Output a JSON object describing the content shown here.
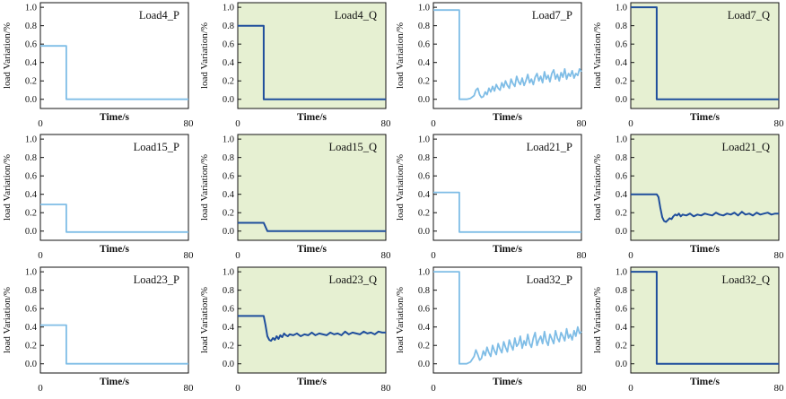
{
  "colors": {
    "p_line": "#7fbde6",
    "q_line": "#1f4e9c",
    "q_background": "#e6f0d2",
    "p_background": "#ffffff",
    "axis": "#111111"
  },
  "shared_axes": {
    "xlabel": "Time/s",
    "ylabel": "load Variation/%",
    "xlim": [
      0,
      80
    ],
    "xticks": [
      0,
      80
    ],
    "ylim": [
      -0.1,
      1.05
    ],
    "yticks": [
      "0.0",
      "0.2",
      "0.4",
      "0.6",
      "0.8",
      "1.0"
    ]
  },
  "chart_data": [
    {
      "type": "line",
      "title": "Load4_P",
      "kind": "P",
      "x": [
        0,
        14,
        14,
        80
      ],
      "y": [
        0.58,
        0.58,
        0.0,
        0.0
      ],
      "xlabel": "Time/s",
      "ylabel": "load Variation/%",
      "xlim": [
        0,
        80
      ],
      "ylim": [
        -0.1,
        1.05
      ]
    },
    {
      "type": "line",
      "title": "Load4_Q",
      "kind": "Q",
      "x": [
        0,
        14,
        14,
        80
      ],
      "y": [
        0.8,
        0.8,
        0.0,
        0.0
      ],
      "xlabel": "Time/s",
      "ylabel": "load Variation/%",
      "xlim": [
        0,
        80
      ],
      "ylim": [
        -0.1,
        1.05
      ]
    },
    {
      "type": "line",
      "title": "Load7_P",
      "kind": "P",
      "x": [
        0,
        14,
        14,
        18,
        20,
        22,
        23,
        24,
        25,
        26,
        27,
        28,
        29,
        30,
        31,
        32,
        33,
        34,
        35,
        36,
        37,
        38,
        39,
        40,
        41,
        42,
        43,
        44,
        45,
        46,
        47,
        48,
        49,
        50,
        51,
        52,
        53,
        54,
        55,
        56,
        57,
        58,
        59,
        60,
        61,
        62,
        63,
        64,
        65,
        66,
        67,
        68,
        69,
        70,
        71,
        72,
        73,
        74,
        75,
        76,
        77,
        78,
        79,
        80
      ],
      "y": [
        0.97,
        0.97,
        0.0,
        0.0,
        0.01,
        0.04,
        0.1,
        0.12,
        0.05,
        0.02,
        0.03,
        0.08,
        0.05,
        0.12,
        0.08,
        0.14,
        0.09,
        0.16,
        0.12,
        0.1,
        0.18,
        0.13,
        0.2,
        0.15,
        0.12,
        0.22,
        0.17,
        0.14,
        0.25,
        0.19,
        0.16,
        0.23,
        0.15,
        0.2,
        0.27,
        0.18,
        0.22,
        0.16,
        0.24,
        0.28,
        0.2,
        0.25,
        0.18,
        0.3,
        0.22,
        0.26,
        0.19,
        0.28,
        0.32,
        0.22,
        0.27,
        0.2,
        0.29,
        0.24,
        0.33,
        0.22,
        0.28,
        0.25,
        0.31,
        0.23,
        0.28,
        0.26,
        0.33,
        0.3
      ],
      "xlabel": "Time/s",
      "ylabel": "load Variation/%",
      "xlim": [
        0,
        80
      ],
      "ylim": [
        -0.1,
        1.05
      ]
    },
    {
      "type": "line",
      "title": "Load7_Q",
      "kind": "Q",
      "x": [
        0,
        14,
        14,
        80
      ],
      "y": [
        1.0,
        1.0,
        0.0,
        0.0
      ],
      "xlabel": "Time/s",
      "ylabel": "load Variation/%",
      "xlim": [
        0,
        80
      ],
      "ylim": [
        -0.1,
        1.05
      ]
    },
    {
      "type": "line",
      "title": "Load15_P",
      "kind": "P",
      "x": [
        0,
        14,
        14,
        80
      ],
      "y": [
        0.29,
        0.29,
        -0.01,
        -0.01
      ],
      "xlabel": "Time/s",
      "ylabel": "load Variation/%",
      "xlim": [
        0,
        80
      ],
      "ylim": [
        -0.1,
        1.05
      ]
    },
    {
      "type": "line",
      "title": "Load15_Q",
      "kind": "Q",
      "x": [
        0,
        14,
        16,
        80
      ],
      "y": [
        0.09,
        0.09,
        0.0,
        0.0
      ],
      "xlabel": "Time/s",
      "ylabel": "load Variation/%",
      "xlim": [
        0,
        80
      ],
      "ylim": [
        -0.1,
        1.05
      ]
    },
    {
      "type": "line",
      "title": "Load21_P",
      "kind": "P",
      "x": [
        0,
        14,
        14,
        80
      ],
      "y": [
        0.42,
        0.42,
        -0.01,
        -0.01
      ],
      "xlabel": "Time/s",
      "ylabel": "load Variation/%",
      "xlim": [
        0,
        80
      ],
      "ylim": [
        -0.1,
        1.05
      ]
    },
    {
      "type": "line",
      "title": "Load21_Q",
      "kind": "Q",
      "x": [
        0,
        14,
        15,
        16,
        17,
        18,
        19,
        20,
        21,
        22,
        23,
        24,
        25,
        26,
        27,
        28,
        30,
        32,
        34,
        36,
        38,
        40,
        42,
        44,
        46,
        48,
        50,
        52,
        54,
        56,
        58,
        60,
        62,
        64,
        66,
        68,
        70,
        72,
        74,
        76,
        78,
        80
      ],
      "y": [
        0.4,
        0.4,
        0.37,
        0.25,
        0.15,
        0.11,
        0.1,
        0.12,
        0.14,
        0.13,
        0.16,
        0.18,
        0.17,
        0.19,
        0.16,
        0.18,
        0.17,
        0.19,
        0.16,
        0.18,
        0.17,
        0.19,
        0.18,
        0.17,
        0.2,
        0.18,
        0.17,
        0.19,
        0.18,
        0.2,
        0.17,
        0.21,
        0.18,
        0.19,
        0.17,
        0.2,
        0.18,
        0.19,
        0.2,
        0.18,
        0.19,
        0.19
      ],
      "xlabel": "Time/s",
      "ylabel": "load Variation/%",
      "xlim": [
        0,
        80
      ],
      "ylim": [
        -0.1,
        1.05
      ]
    },
    {
      "type": "line",
      "title": "Load23_P",
      "kind": "P",
      "x": [
        0,
        14,
        14,
        80
      ],
      "y": [
        0.42,
        0.42,
        0.0,
        0.0
      ],
      "xlabel": "Time/s",
      "ylabel": "load Variation/%",
      "xlim": [
        0,
        80
      ],
      "ylim": [
        -0.1,
        1.05
      ]
    },
    {
      "type": "line",
      "title": "Load23_Q",
      "kind": "Q",
      "x": [
        0,
        14,
        15,
        16,
        17,
        18,
        19,
        20,
        21,
        22,
        23,
        24,
        25,
        26,
        27,
        28,
        30,
        32,
        34,
        36,
        38,
        40,
        42,
        44,
        46,
        48,
        50,
        52,
        54,
        56,
        58,
        60,
        62,
        64,
        66,
        68,
        70,
        72,
        74,
        76,
        78,
        80
      ],
      "y": [
        0.52,
        0.52,
        0.42,
        0.3,
        0.26,
        0.25,
        0.28,
        0.26,
        0.3,
        0.27,
        0.31,
        0.29,
        0.33,
        0.31,
        0.3,
        0.32,
        0.31,
        0.33,
        0.3,
        0.32,
        0.31,
        0.34,
        0.31,
        0.33,
        0.32,
        0.31,
        0.34,
        0.32,
        0.33,
        0.31,
        0.35,
        0.32,
        0.34,
        0.33,
        0.32,
        0.35,
        0.33,
        0.34,
        0.32,
        0.35,
        0.34,
        0.34
      ],
      "xlabel": "Time/s",
      "ylabel": "load Variation/%",
      "xlim": [
        0,
        80
      ],
      "ylim": [
        -0.1,
        1.05
      ]
    },
    {
      "type": "line",
      "title": "Load32_P",
      "kind": "P",
      "x": [
        0,
        14,
        14,
        18,
        20,
        22,
        23,
        24,
        25,
        26,
        27,
        28,
        29,
        30,
        31,
        32,
        33,
        34,
        35,
        36,
        37,
        38,
        39,
        40,
        41,
        42,
        43,
        44,
        45,
        46,
        47,
        48,
        49,
        50,
        51,
        52,
        53,
        54,
        55,
        56,
        57,
        58,
        59,
        60,
        61,
        62,
        63,
        64,
        65,
        66,
        67,
        68,
        69,
        70,
        71,
        72,
        73,
        74,
        75,
        76,
        77,
        78,
        79,
        80
      ],
      "y": [
        1.0,
        1.0,
        0.0,
        0.0,
        0.02,
        0.08,
        0.15,
        0.1,
        0.04,
        0.06,
        0.14,
        0.09,
        0.18,
        0.12,
        0.08,
        0.2,
        0.14,
        0.1,
        0.22,
        0.16,
        0.12,
        0.24,
        0.18,
        0.13,
        0.26,
        0.2,
        0.15,
        0.28,
        0.19,
        0.22,
        0.3,
        0.17,
        0.25,
        0.2,
        0.32,
        0.22,
        0.18,
        0.28,
        0.34,
        0.2,
        0.26,
        0.3,
        0.22,
        0.35,
        0.25,
        0.2,
        0.32,
        0.27,
        0.22,
        0.36,
        0.28,
        0.24,
        0.34,
        0.3,
        0.25,
        0.38,
        0.28,
        0.32,
        0.26,
        0.36,
        0.3,
        0.4,
        0.33,
        0.35
      ],
      "xlabel": "Time/s",
      "ylabel": "load Variation/%",
      "xlim": [
        0,
        80
      ],
      "ylim": [
        -0.1,
        1.05
      ]
    },
    {
      "type": "line",
      "title": "Load32_Q",
      "kind": "Q",
      "x": [
        0,
        14,
        14,
        80
      ],
      "y": [
        1.0,
        1.0,
        0.0,
        0.0
      ],
      "xlabel": "Time/s",
      "ylabel": "load Variation/%",
      "xlim": [
        0,
        80
      ],
      "ylim": [
        -0.1,
        1.05
      ]
    }
  ]
}
